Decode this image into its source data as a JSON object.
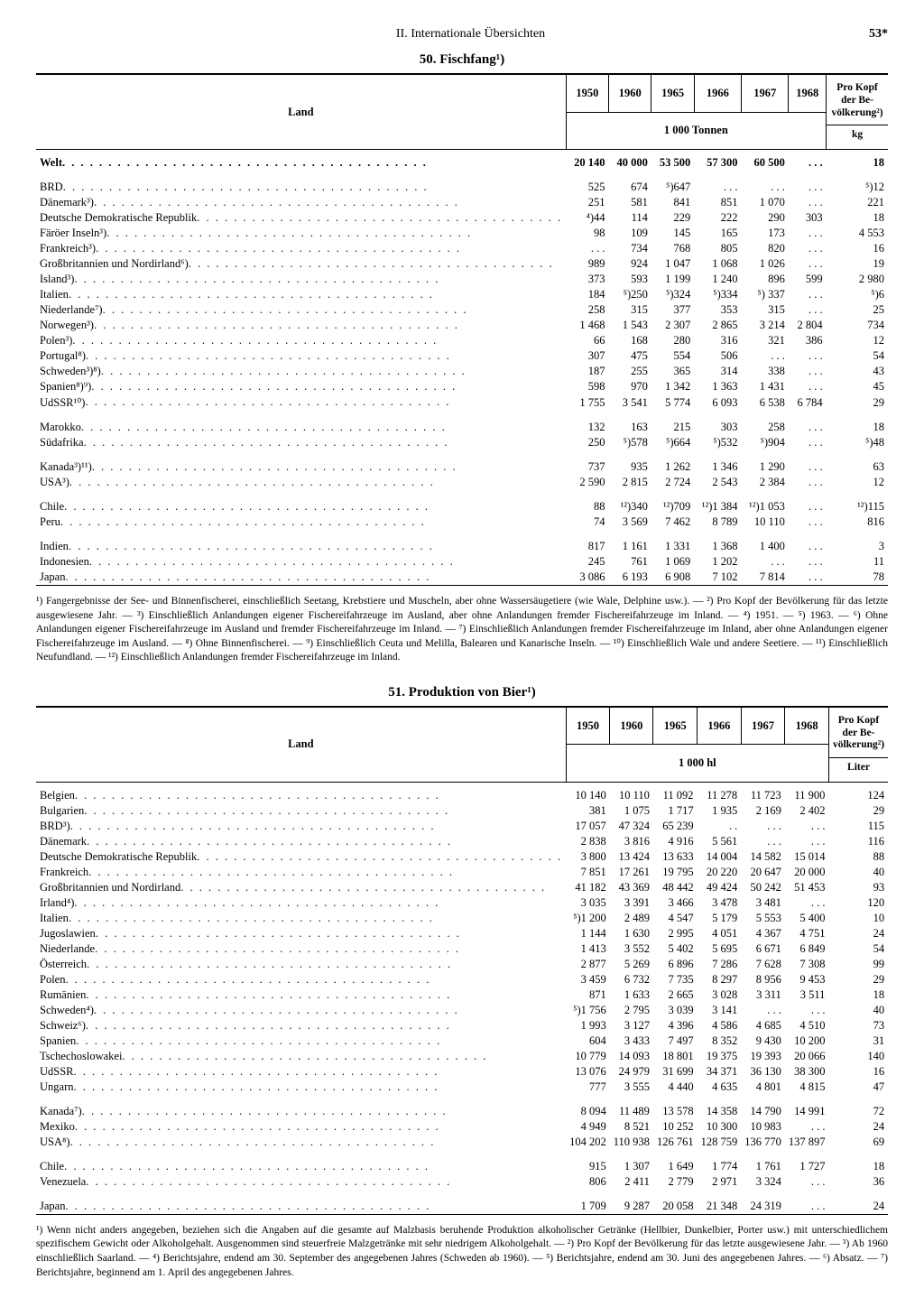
{
  "header": {
    "section": "II. Internationale Übersichten",
    "page": "53*"
  },
  "table50": {
    "title": "50. Fischfang¹)",
    "columns": {
      "land": "Land",
      "years": [
        "1950",
        "1960",
        "1965",
        "1966",
        "1967",
        "1968"
      ],
      "perCapita": "Pro Kopf der Be-völkerung²)",
      "unit": "1 000 Tonnen",
      "perCapitaUnit": "kg"
    },
    "groups": [
      {
        "rows": [
          {
            "land": "Welt",
            "v": [
              "20 140",
              "40 000",
              "53 500",
              "57 300",
              "60 500",
              ". . ."
            ],
            "pc": "18",
            "bold": true
          }
        ]
      },
      {
        "rows": [
          {
            "land": "BRD",
            "v": [
              "525",
              "674",
              "⁵)647",
              ". . .",
              ". . .",
              ". . ."
            ],
            "pc": "⁵)12"
          },
          {
            "land": "Dänemark³)",
            "v": [
              "251",
              "581",
              "841",
              "851",
              "1 070",
              ". . ."
            ],
            "pc": "221"
          },
          {
            "land": "Deutsche Demokratische Republik",
            "v": [
              "⁴)44",
              "114",
              "229",
              "222",
              "290",
              "303"
            ],
            "pc": "18"
          },
          {
            "land": "Färöer Inseln³)",
            "v": [
              "98",
              "109",
              "145",
              "165",
              "173",
              ". . ."
            ],
            "pc": "4 553"
          },
          {
            "land": "Frankreich³)",
            "v": [
              ". . .",
              "734",
              "768",
              "805",
              "820",
              ". . ."
            ],
            "pc": "16"
          },
          {
            "land": "Großbritannien und Nordirland⁶)",
            "v": [
              "989",
              "924",
              "1 047",
              "1 068",
              "1 026",
              ". . ."
            ],
            "pc": "19"
          },
          {
            "land": "Island³)",
            "v": [
              "373",
              "593",
              "1 199",
              "1 240",
              "896",
              "599"
            ],
            "pc": "2 980"
          },
          {
            "land": "Italien",
            "v": [
              "184",
              "⁵)250",
              "⁵)324",
              "⁵)334",
              "⁵) 337",
              ". . ."
            ],
            "pc": "⁵)6"
          },
          {
            "land": "Niederlande⁷)",
            "v": [
              "258",
              "315",
              "377",
              "353",
              "315",
              ". . ."
            ],
            "pc": "25"
          },
          {
            "land": "Norwegen³)",
            "v": [
              "1 468",
              "1 543",
              "2 307",
              "2 865",
              "3 214",
              "2 804"
            ],
            "pc": "734"
          },
          {
            "land": "Polen³)",
            "v": [
              "66",
              "168",
              "280",
              "316",
              "321",
              "386"
            ],
            "pc": "12"
          },
          {
            "land": "Portugal⁸)",
            "v": [
              "307",
              "475",
              "554",
              "506",
              ". . .",
              ". . ."
            ],
            "pc": "54"
          },
          {
            "land": "Schweden³)⁸)",
            "v": [
              "187",
              "255",
              "365",
              "314",
              "338",
              ". . ."
            ],
            "pc": "43"
          },
          {
            "land": "Spanien⁸)⁹)",
            "v": [
              "598",
              "970",
              "1 342",
              "1 363",
              "1 431",
              ". . ."
            ],
            "pc": "45"
          },
          {
            "land": "UdSSR¹⁰)",
            "v": [
              "1 755",
              "3 541",
              "5 774",
              "6 093",
              "6 538",
              "6 784"
            ],
            "pc": "29"
          }
        ]
      },
      {
        "rows": [
          {
            "land": "Marokko",
            "v": [
              "132",
              "163",
              "215",
              "303",
              "258",
              ". . ."
            ],
            "pc": "18"
          },
          {
            "land": "Südafrika",
            "v": [
              "250",
              "⁵)578",
              "⁵)664",
              "⁵)532",
              "⁵)904",
              ". . ."
            ],
            "pc": "⁵)48"
          }
        ]
      },
      {
        "rows": [
          {
            "land": "Kanada³)¹¹)",
            "v": [
              "737",
              "935",
              "1 262",
              "1 346",
              "1 290",
              ". . ."
            ],
            "pc": "63"
          },
          {
            "land": "USA³)",
            "v": [
              "2 590",
              "2 815",
              "2 724",
              "2 543",
              "2 384",
              ". . ."
            ],
            "pc": "12"
          }
        ]
      },
      {
        "rows": [
          {
            "land": "Chile",
            "v": [
              "88",
              "¹²)340",
              "¹²)709",
              "¹²)1 384",
              "¹²)1 053",
              ". . ."
            ],
            "pc": "¹²)115"
          },
          {
            "land": "Peru",
            "v": [
              "74",
              "3 569",
              "7 462",
              "8 789",
              "10 110",
              ". . ."
            ],
            "pc": "816"
          }
        ]
      },
      {
        "rows": [
          {
            "land": "Indien",
            "v": [
              "817",
              "1 161",
              "1 331",
              "1 368",
              "1 400",
              ". . ."
            ],
            "pc": "3"
          },
          {
            "land": "Indonesien",
            "v": [
              "245",
              "761",
              "1 069",
              "1 202",
              ". . .",
              ". . ."
            ],
            "pc": "11"
          },
          {
            "land": "Japan",
            "v": [
              "3 086",
              "6 193",
              "6 908",
              "7 102",
              "7 814",
              ". . ."
            ],
            "pc": "78"
          }
        ]
      }
    ],
    "footnotes": "¹) Fangergebnisse der See- und Binnenfischerei, einschließlich Seetang, Krebstiere und Muscheln, aber ohne Wassersäugetiere (wie Wale, Delphine usw.). — ²) Pro Kopf der Bevölkerung für das letzte ausgewiesene Jahr. — ³) Einschließlich Anlandungen eigener Fischereifahrzeuge im Ausland, aber ohne Anlandungen fremder Fischereifahrzeuge im Inland. — ⁴) 1951. — ⁵) 1963. — ⁶) Ohne Anlandungen eigener Fischereifahrzeuge im Ausland und fremder Fischereifahrzeuge im Inland. — ⁷) Einschließlich Anlandungen fremder Fischereifahrzeuge im Inland, aber ohne Anlandungen eigener Fischereifahrzeuge im Ausland. — ⁸) Ohne Binnenfischerei. — ⁹) Einschließlich Ceuta und Melilla, Balearen und Kanarische Inseln. — ¹⁰) Einschließlich Wale und andere Seetiere. — ¹¹) Einschließlich Neufundland. — ¹²) Einschließlich Anlandungen fremder Fischereifahrzeuge im Inland."
  },
  "table51": {
    "title": "51. Produktion von Bier¹)",
    "columns": {
      "land": "Land",
      "years": [
        "1950",
        "1960",
        "1965",
        "1966",
        "1967",
        "1968"
      ],
      "perCapita": "Pro Kopf der Be-völkerung²)",
      "unit": "1 000 hl",
      "perCapitaUnit": "Liter"
    },
    "groups": [
      {
        "rows": [
          {
            "land": "Belgien",
            "v": [
              "10 140",
              "10 110",
              "11 092",
              "11 278",
              "11 723",
              "11 900"
            ],
            "pc": "124"
          },
          {
            "land": "Bulgarien",
            "v": [
              "381",
              "1 075",
              "1 717",
              "1 935",
              "2 169",
              "2 402"
            ],
            "pc": "29"
          },
          {
            "land": "BRD³)",
            "v": [
              "17 057",
              "47 324",
              "65 239",
              ". .",
              ". . .",
              ". . ."
            ],
            "pc": "115"
          },
          {
            "land": "Dänemark",
            "v": [
              "2 838",
              "3 816",
              "4 916",
              "5 561",
              ". . .",
              ". . ."
            ],
            "pc": "116"
          },
          {
            "land": "Deutsche Demokratische Republik",
            "v": [
              "3 800",
              "13 424",
              "13 633",
              "14 004",
              "14 582",
              "15 014"
            ],
            "pc": "88"
          },
          {
            "land": "Frankreich",
            "v": [
              "7 851",
              "17 261",
              "19 795",
              "20 220",
              "20 647",
              "20 000"
            ],
            "pc": "40"
          },
          {
            "land": "Großbritannien und Nordirland",
            "v": [
              "41 182",
              "43 369",
              "48 442",
              "49 424",
              "50 242",
              "51 453"
            ],
            "pc": "93"
          },
          {
            "land": "Irland⁴)",
            "v": [
              "3 035",
              "3 391",
              "3 466",
              "3 478",
              "3 481",
              ". . ."
            ],
            "pc": "120"
          },
          {
            "land": "Italien",
            "v": [
              "⁵)1 200",
              "2 489",
              "4 547",
              "5 179",
              "5 553",
              "5 400"
            ],
            "pc": "10"
          },
          {
            "land": "Jugoslawien",
            "v": [
              "1 144",
              "1 630",
              "2 995",
              "4 051",
              "4 367",
              "4 751"
            ],
            "pc": "24"
          },
          {
            "land": "Niederlande",
            "v": [
              "1 413",
              "3 552",
              "5 402",
              "5 695",
              "6 671",
              "6 849"
            ],
            "pc": "54"
          },
          {
            "land": "Österreich",
            "v": [
              "2 877",
              "5 269",
              "6 896",
              "7 286",
              "7 628",
              "7 308"
            ],
            "pc": "99"
          },
          {
            "land": "Polen",
            "v": [
              "3 459",
              "6 732",
              "7 735",
              "8 297",
              "8 956",
              "9 453"
            ],
            "pc": "29"
          },
          {
            "land": "Rumänien",
            "v": [
              "871",
              "1 633",
              "2 665",
              "3 028",
              "3 311",
              "3 511"
            ],
            "pc": "18"
          },
          {
            "land": "Schweden⁴)",
            "v": [
              "⁵)1 756",
              "2 795",
              "3 039",
              "3 141",
              ". . .",
              ". . ."
            ],
            "pc": "40"
          },
          {
            "land": "Schweiz⁶)",
            "v": [
              "1 993",
              "3 127",
              "4 396",
              "4 586",
              "4 685",
              "4 510"
            ],
            "pc": "73"
          },
          {
            "land": "Spanien",
            "v": [
              "604",
              "3 433",
              "7 497",
              "8 352",
              "9 430",
              "10 200"
            ],
            "pc": "31"
          },
          {
            "land": "Tschechoslowakei",
            "v": [
              "10 779",
              "14 093",
              "18 801",
              "19 375",
              "19 393",
              "20 066"
            ],
            "pc": "140"
          },
          {
            "land": "UdSSR",
            "v": [
              "13 076",
              "24 979",
              "31 699",
              "34 371",
              "36 130",
              "38 300"
            ],
            "pc": "16"
          },
          {
            "land": "Ungarn",
            "v": [
              "777",
              "3 555",
              "4 440",
              "4 635",
              "4 801",
              "4 815"
            ],
            "pc": "47"
          }
        ]
      },
      {
        "rows": [
          {
            "land": "Kanada⁷)",
            "v": [
              "8 094",
              "11 489",
              "13 578",
              "14 358",
              "14 790",
              "14 991"
            ],
            "pc": "72"
          },
          {
            "land": "Mexiko",
            "v": [
              "4 949",
              "8 521",
              "10 252",
              "10 300",
              "10 983",
              ". . ."
            ],
            "pc": "24"
          },
          {
            "land": "USA⁸)",
            "v": [
              "104 202",
              "110 938",
              "126 761",
              "128 759",
              "136 770",
              "137 897"
            ],
            "pc": "69"
          }
        ]
      },
      {
        "rows": [
          {
            "land": "Chile",
            "v": [
              "915",
              "1 307",
              "1 649",
              "1 774",
              "1 761",
              "1 727"
            ],
            "pc": "18"
          },
          {
            "land": "Venezuela",
            "v": [
              "806",
              "2 411",
              "2 779",
              "2 971",
              "3 324",
              ". . ."
            ],
            "pc": "36"
          }
        ]
      },
      {
        "rows": [
          {
            "land": "Japan",
            "v": [
              "1 709",
              "9 287",
              "20 058",
              "21 348",
              "24 319",
              ". . ."
            ],
            "pc": "24"
          }
        ]
      }
    ],
    "footnotes": "¹) Wenn nicht anders angegeben, beziehen sich die Angaben auf die gesamte auf Malzbasis beruhende Produktion alkoholischer Getränke (Hellbier, Dunkelbier, Porter usw.) mit unterschiedlichem spezifischem Gewicht oder Alkoholgehalt. Ausgenommen sind steuerfreie Malzgetränke mit sehr niedrigem Alkoholgehalt. — ²) Pro Kopf der Bevölkerung für das letzte ausgewiesene Jahr. — ³) Ab 1960 einschließlich Saarland. — ⁴) Berichtsjahre, endend am 30. September des angegebenen Jahres (Schweden ab 1960). — ⁵) Berichtsjahre, endend am 30. Juni des angegebenen Jahres. — ⁶) Absatz. — ⁷) Berichtsjahre, beginnend am 1. April des angegebenen Jahres."
  },
  "colWidths": {
    "land": "30%",
    "year": "10%",
    "pc": "10%"
  }
}
